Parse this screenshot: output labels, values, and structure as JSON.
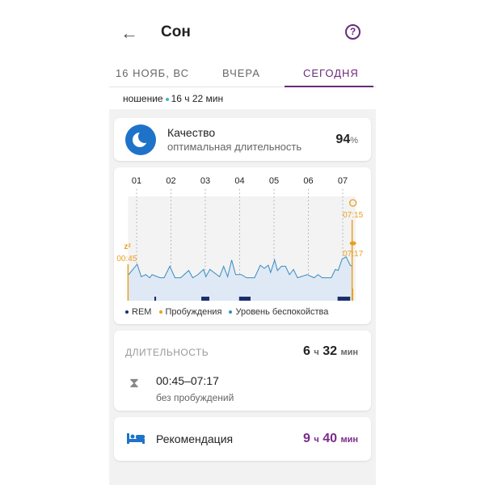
{
  "header": {
    "title": "Сон",
    "back_icon": "arrow-left-icon",
    "help_icon": "help-circle-icon"
  },
  "tabs": [
    {
      "label": "16 НОЯБ, ВС"
    },
    {
      "label": "ВЧЕРА"
    },
    {
      "label": "СЕГОДНЯ",
      "active": true
    }
  ],
  "wear": {
    "label": "ношение",
    "value": "16 ч 22 мин"
  },
  "quality": {
    "title": "Качество",
    "subtitle": "оптимальная длительность",
    "value": "94",
    "unit": "%"
  },
  "chart_data": {
    "type": "area",
    "x_ticks": [
      "01",
      "02",
      "03",
      "04",
      "05",
      "06",
      "07"
    ],
    "xlim": [
      "00:45",
      "07:17"
    ],
    "ylim": [
      0,
      100
    ],
    "sleep_start": {
      "time": "00:45",
      "label": "00:45",
      "icon": "zzz-icon"
    },
    "alarm": {
      "time": "07:15",
      "label": "07:15",
      "icon": "alarm-clock-icon"
    },
    "wake": {
      "time": "07:17",
      "label": "07:17",
      "icon": "eye-icon"
    },
    "legend": [
      {
        "name": "REM",
        "color": "#1a2f6e"
      },
      {
        "name": "Пробуждения",
        "color": "#e8a020"
      },
      {
        "name": "Уровень беспокойства",
        "color": "#3a8cc0"
      }
    ],
    "restlessness": {
      "times": [
        "00:46",
        "01:01",
        "01:08",
        "01:16",
        "01:23",
        "01:27",
        "01:41",
        "01:48",
        "01:58",
        "02:07",
        "02:17",
        "02:31",
        "02:38",
        "02:47",
        "02:57",
        "03:01",
        "03:08",
        "03:20",
        "03:25",
        "03:32",
        "03:39",
        "03:46",
        "03:53",
        "04:03",
        "04:12",
        "04:26",
        "04:36",
        "04:43",
        "04:50",
        "04:54",
        "05:01",
        "05:06",
        "05:13",
        "05:20",
        "05:27",
        "05:34",
        "05:41",
        "05:58",
        "06:10",
        "06:17",
        "06:24",
        "06:40",
        "06:47",
        "06:52",
        "06:59",
        "07:06",
        "07:13",
        "07:16"
      ],
      "values": [
        25,
        35,
        23,
        25,
        22,
        25,
        22,
        22,
        33,
        22,
        22,
        29,
        22,
        25,
        30,
        23,
        30,
        25,
        23,
        33,
        23,
        39,
        25,
        25,
        22,
        22,
        34,
        31,
        34,
        27,
        39,
        29,
        33,
        33,
        25,
        30,
        22,
        25,
        22,
        25,
        22,
        22,
        30,
        29,
        40,
        42,
        34,
        33
      ]
    },
    "rem": [
      [
        "01:31",
        "01:34"
      ],
      [
        "02:53",
        "03:07"
      ],
      [
        "03:59",
        "04:19"
      ],
      [
        "06:51",
        "07:13"
      ]
    ]
  },
  "duration": {
    "label": "ДЛИТЕЛЬНОСТЬ",
    "hours": "6",
    "h_unit": "ч",
    "minutes": "32",
    "m_unit": "мин",
    "range": "00:45–07:17",
    "note": "без пробуждений",
    "icon": "hourglass-icon"
  },
  "recommendation": {
    "label": "Рекомендация",
    "hours": "9",
    "h_unit": "ч",
    "minutes": "40",
    "m_unit": "мин",
    "icon": "bed-icon",
    "color": "#7a2a8a"
  }
}
